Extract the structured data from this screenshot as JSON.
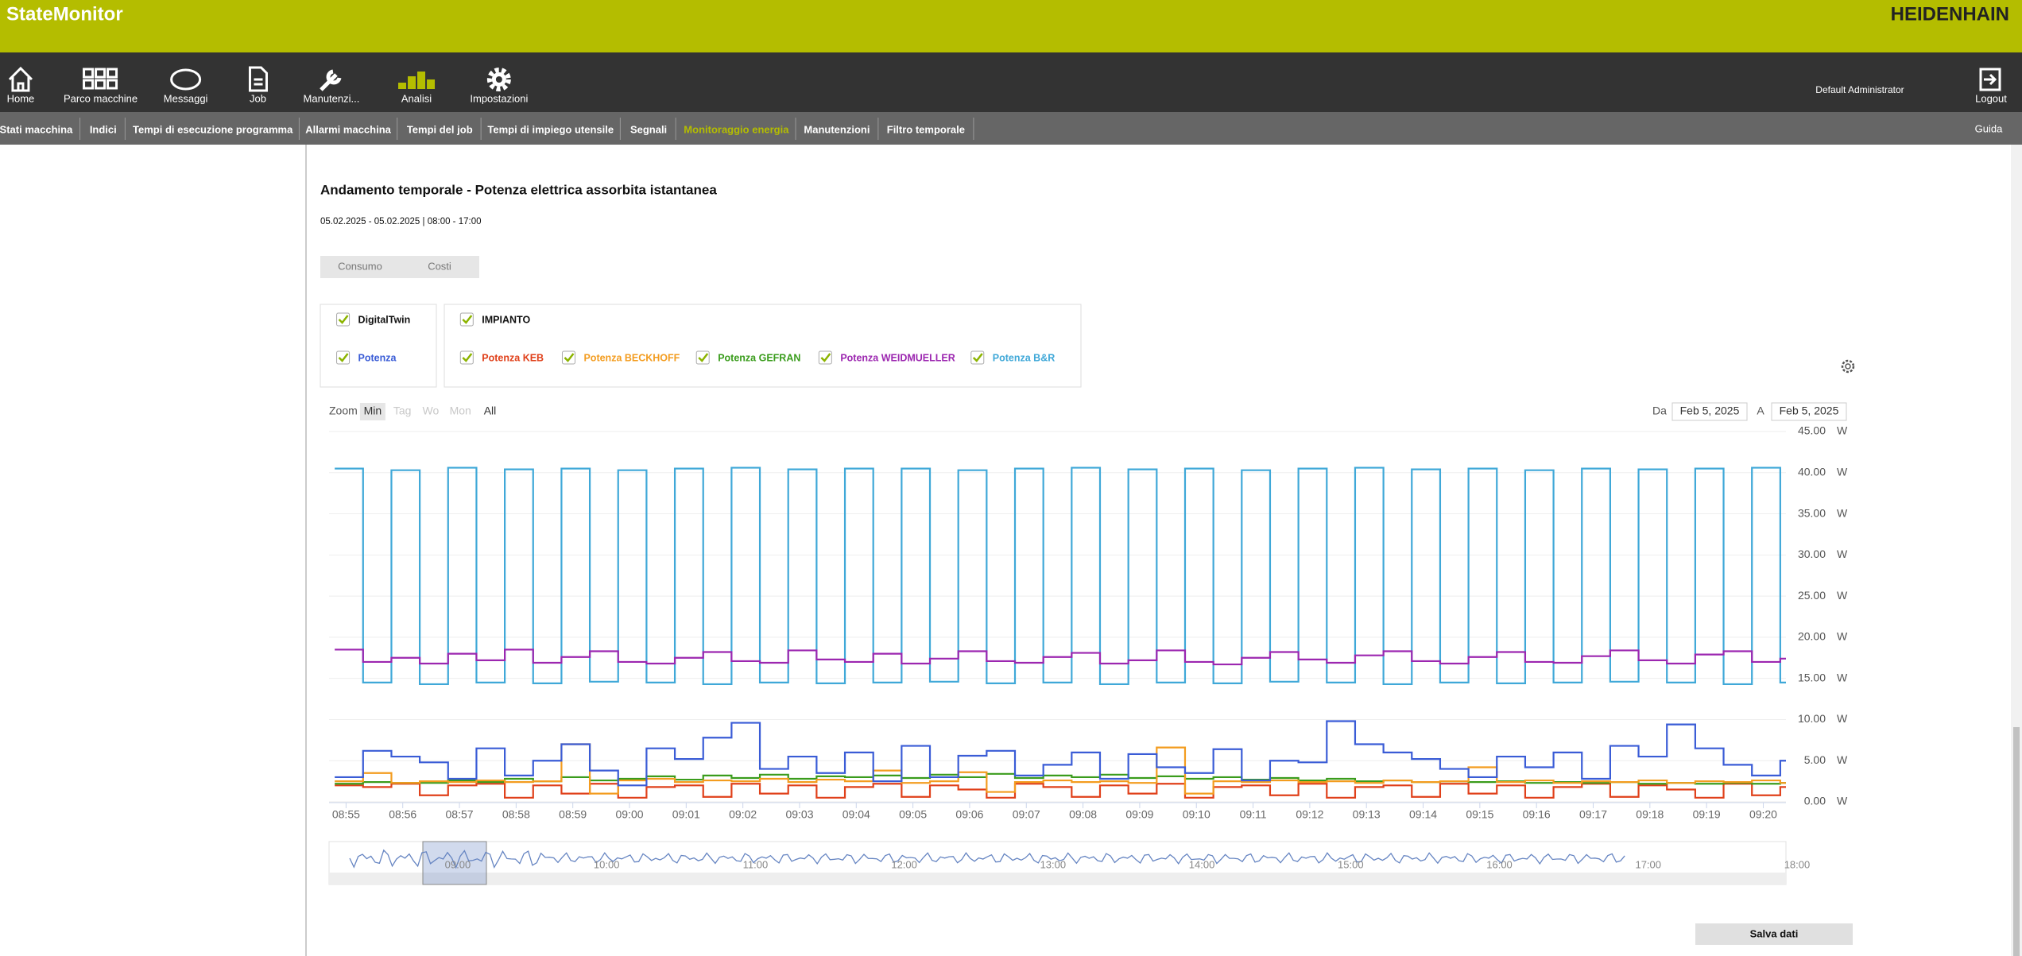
{
  "top_bar": {
    "app_name": "StateMonitor",
    "brand": "HEIDENHAIN"
  },
  "nav": {
    "items": [
      "Home",
      "Parco macchine",
      "Messaggi",
      "Job",
      "Manutenzi...",
      "Analisi",
      "Impostazioni"
    ],
    "user": "Default Administrator",
    "logout": "Logout"
  },
  "subnav": {
    "items": [
      "Stati macchina",
      "Indici",
      "Tempi di esecuzione programma",
      "Allarmi macchina",
      "Tempi del job",
      "Tempi di impiego utensile",
      "Segnali",
      "Monitoraggio energia",
      "Manutenzioni",
      "Filtro temporale"
    ],
    "help": "Guida"
  },
  "page": {
    "title": "Andamento temporale - Potenza elettrica assorbita istantanea",
    "date_range": "05.02.2025 - 05.02.2025 | 08:00 - 17:00",
    "toggle": [
      "Consumo",
      "Costi"
    ],
    "zoom": {
      "label": "Zoom",
      "buttons": [
        "Min",
        "Tag",
        "Wo",
        "Mon",
        "All"
      ]
    },
    "date_from_label": "Da",
    "date_from": "Feb 5, 2025",
    "date_to_label": "A",
    "date_to": "Feb 5, 2025",
    "save": "Salva dati"
  },
  "navigator": {
    "labels": [
      "09:00",
      "10:00",
      "11:00",
      "12:00",
      "13:00",
      "14:00",
      "15:00",
      "16:00",
      "17:00",
      "18:00"
    ]
  },
  "chart_data": {
    "type": "line",
    "step": true,
    "grid": true,
    "legend_groups": [
      {
        "name": "DigitalTwin",
        "series": [
          0
        ]
      },
      {
        "name": "IMPIANTO",
        "series": [
          1,
          2,
          3,
          4,
          5
        ]
      }
    ],
    "y_unit": "W",
    "xlim": [
      534.7,
      560.4
    ],
    "xticks": [
      {
        "value": 535,
        "label": "08:55"
      },
      {
        "value": 536,
        "label": "08:56"
      },
      {
        "value": 537,
        "label": "08:57"
      },
      {
        "value": 538,
        "label": "08:58"
      },
      {
        "value": 539,
        "label": "08:59"
      },
      {
        "value": 540,
        "label": "09:00"
      },
      {
        "value": 541,
        "label": "09:01"
      },
      {
        "value": 542,
        "label": "09:02"
      },
      {
        "value": 543,
        "label": "09:03"
      },
      {
        "value": 544,
        "label": "09:04"
      },
      {
        "value": 545,
        "label": "09:05"
      },
      {
        "value": 546,
        "label": "09:06"
      },
      {
        "value": 547,
        "label": "09:07"
      },
      {
        "value": 548,
        "label": "09:08"
      },
      {
        "value": 549,
        "label": "09:09"
      },
      {
        "value": 550,
        "label": "09:10"
      },
      {
        "value": 551,
        "label": "09:11"
      },
      {
        "value": 552,
        "label": "09:12"
      },
      {
        "value": 553,
        "label": "09:13"
      },
      {
        "value": 554,
        "label": "09:14"
      },
      {
        "value": 555,
        "label": "09:15"
      },
      {
        "value": 556,
        "label": "09:16"
      },
      {
        "value": 557,
        "label": "09:17"
      },
      {
        "value": 558,
        "label": "09:18"
      },
      {
        "value": 559,
        "label": "09:19"
      },
      {
        "value": 560,
        "label": "09:20"
      }
    ],
    "ylim": [
      0,
      45
    ],
    "yticks": [
      {
        "value": 0,
        "label": "0.00"
      },
      {
        "value": 5,
        "label": "5.00"
      },
      {
        "value": 10,
        "label": "10.00"
      },
      {
        "value": 15,
        "label": "15.00"
      },
      {
        "value": 20,
        "label": "20.00"
      },
      {
        "value": 25,
        "label": "25.00"
      },
      {
        "value": 30,
        "label": "30.00"
      },
      {
        "value": 35,
        "label": "35.00"
      },
      {
        "value": 40,
        "label": "40.00"
      },
      {
        "value": 45,
        "label": "45.00"
      }
    ],
    "x": [
      534.8,
      535.3,
      535.8,
      536.3,
      536.8,
      537.3,
      537.8,
      538.3,
      538.8,
      539.3,
      539.8,
      540.3,
      540.8,
      541.3,
      541.8,
      542.3,
      542.8,
      543.3,
      543.8,
      544.3,
      544.8,
      545.3,
      545.8,
      546.3,
      546.8,
      547.3,
      547.8,
      548.3,
      548.8,
      549.3,
      549.8,
      550.3,
      550.8,
      551.3,
      551.8,
      552.3,
      552.8,
      553.3,
      553.8,
      554.3,
      554.8,
      555.3,
      555.8,
      556.3,
      556.8,
      557.3,
      557.8,
      558.3,
      558.8,
      559.3,
      559.8,
      560.3
    ],
    "series": [
      {
        "name": "Potenza",
        "color": "#3a5cd6",
        "values": [
          3.0,
          6.2,
          5.5,
          4.8,
          2.8,
          6.5,
          3.2,
          5.0,
          7.0,
          3.8,
          2.0,
          6.5,
          5.2,
          7.8,
          9.6,
          4.0,
          5.5,
          3.5,
          6.0,
          2.5,
          6.8,
          3.0,
          5.6,
          6.2,
          3.2,
          4.5,
          6.0,
          2.8,
          5.8,
          4.2,
          3.5,
          6.4,
          2.6,
          5.0,
          4.8,
          9.8,
          7.0,
          6.0,
          5.2,
          4.0,
          3.0,
          5.5,
          4.2,
          6.0,
          2.8,
          6.8,
          5.5,
          9.4,
          6.5,
          4.5,
          3.2,
          5.0
        ]
      },
      {
        "name": "Potenza KEB",
        "color": "#e0401a",
        "values": [
          2.0,
          1.8,
          2.2,
          0.8,
          2.0,
          2.2,
          0.5,
          2.0,
          1.0,
          2.2,
          0.5,
          1.8,
          2.0,
          0.6,
          2.2,
          1.0,
          2.0,
          0.5,
          1.8,
          2.2,
          0.6,
          2.0,
          1.5,
          0.5,
          2.2,
          1.8,
          0.6,
          2.0,
          1.0,
          2.2,
          0.5,
          1.8,
          2.0,
          0.8,
          2.2,
          0.5,
          1.8,
          2.0,
          0.6,
          2.2,
          1.0,
          2.0,
          0.5,
          1.8,
          2.2,
          0.6,
          2.0,
          1.5,
          0.5,
          2.2,
          0.8,
          1.8
        ]
      },
      {
        "name": "Potenza BECKHOFF",
        "color": "#f39c1f",
        "values": [
          2.5,
          3.5,
          2.3,
          2.5,
          2.4,
          2.6,
          2.4,
          2.5,
          7.0,
          1.0,
          2.6,
          2.8,
          2.4,
          2.6,
          2.5,
          2.8,
          2.4,
          2.7,
          2.5,
          3.8,
          2.3,
          2.5,
          3.6,
          1.2,
          2.4,
          2.6,
          2.4,
          2.5,
          2.3,
          6.6,
          1.0,
          2.5,
          2.4,
          2.6,
          2.4,
          2.5,
          2.3,
          2.6,
          2.4,
          2.5,
          4.2,
          2.4,
          2.6,
          2.3,
          2.5,
          2.4,
          2.6,
          2.3,
          2.5,
          2.4,
          2.6,
          2.3
        ]
      },
      {
        "name": "Potenza GEFRAN",
        "color": "#3a9c1c",
        "values": [
          2.2,
          2.4,
          2.3,
          2.3,
          2.6,
          2.4,
          2.8,
          2.5,
          3.0,
          2.6,
          2.8,
          3.1,
          2.7,
          3.2,
          2.9,
          3.3,
          2.8,
          3.1,
          3.0,
          3.2,
          2.9,
          3.3,
          3.0,
          3.4,
          2.9,
          3.2,
          3.0,
          3.3,
          2.9,
          3.1,
          2.8,
          3.0,
          2.7,
          2.9,
          2.6,
          2.8,
          2.5,
          2.6,
          2.4,
          2.5,
          2.4,
          2.5,
          2.3,
          2.4,
          2.3,
          2.4,
          2.2,
          2.3,
          2.2,
          2.3,
          2.2,
          2.3
        ]
      },
      {
        "name": "Potenza WEIDMUELLER",
        "color": "#9c27b0",
        "values": [
          18.5,
          17.0,
          17.5,
          16.8,
          18.0,
          17.2,
          18.5,
          16.9,
          17.6,
          18.3,
          17.0,
          16.8,
          17.5,
          18.2,
          17.1,
          16.9,
          18.4,
          17.3,
          17.0,
          18.0,
          16.8,
          17.4,
          18.3,
          17.1,
          16.9,
          17.6,
          18.1,
          16.8,
          17.2,
          18.4,
          17.0,
          16.7,
          17.5,
          18.2,
          17.3,
          16.9,
          17.8,
          18.3,
          17.1,
          16.8,
          17.6,
          18.2,
          17.0,
          16.9,
          17.7,
          18.4,
          17.2,
          16.8,
          17.9,
          18.3,
          17.0,
          17.4
        ]
      },
      {
        "name": "Potenza B&R",
        "color": "#3fa8d8",
        "values": [
          40.5,
          14.5,
          40.3,
          14.3,
          40.6,
          14.5,
          40.4,
          14.4,
          40.5,
          14.6,
          40.3,
          14.5,
          40.5,
          14.3,
          40.6,
          14.5,
          40.4,
          14.4,
          40.5,
          14.5,
          40.5,
          14.6,
          40.3,
          14.4,
          40.5,
          14.5,
          40.6,
          14.3,
          40.4,
          14.5,
          40.5,
          14.4,
          40.3,
          14.6,
          40.5,
          14.5,
          40.6,
          14.3,
          40.4,
          14.5,
          40.5,
          14.4,
          40.3,
          14.5,
          40.5,
          14.6,
          40.4,
          14.5,
          40.5,
          14.3,
          40.6,
          14.5
        ]
      }
    ]
  }
}
